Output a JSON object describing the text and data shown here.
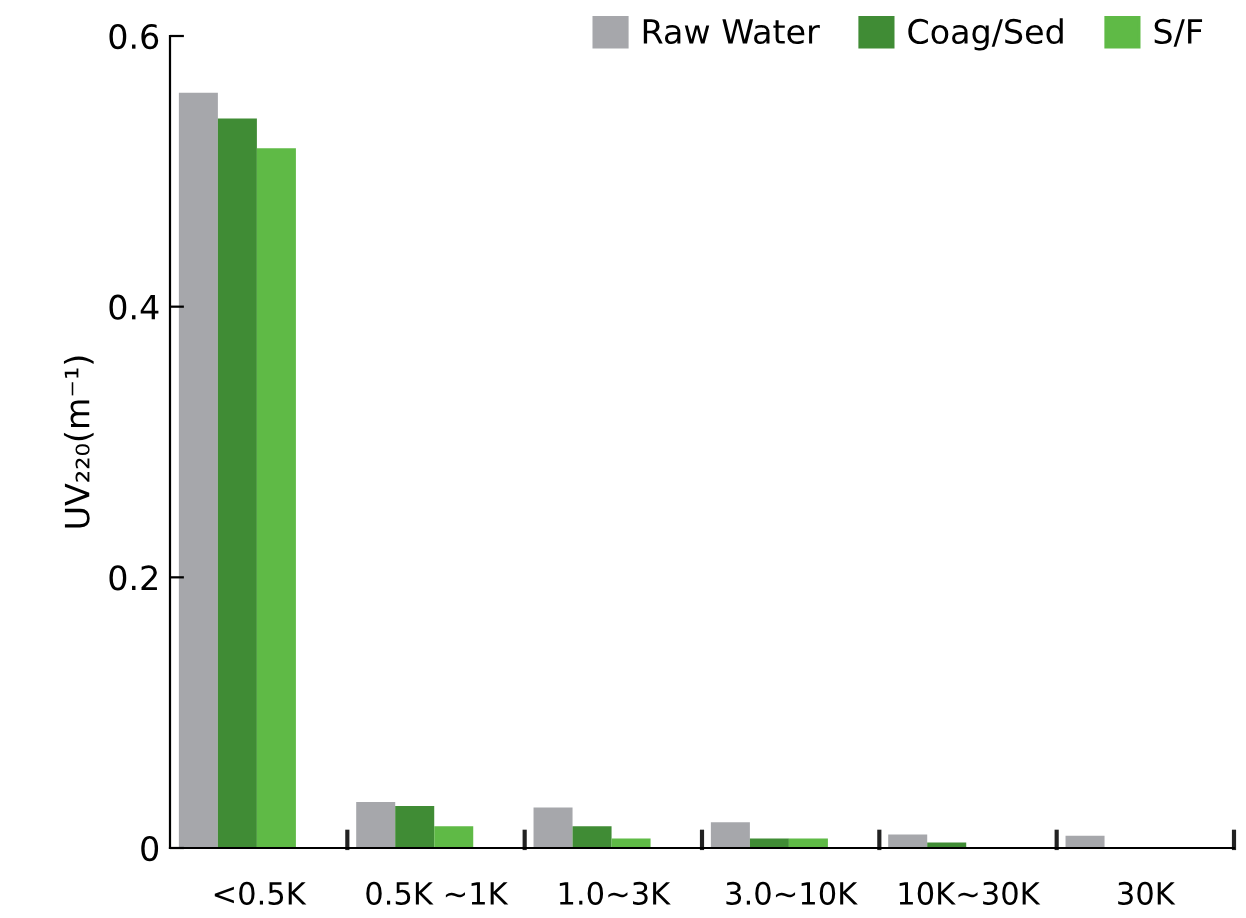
{
  "chart_data": {
    "type": "bar",
    "ylabel": "UV₂₂₀(m⁻¹)",
    "categories": [
      "<0.5K",
      "0.5K ~1K",
      "1.0~3K",
      "3.0~10K",
      "10K~30K",
      "30K"
    ],
    "series": [
      {
        "name": "Raw Water",
        "color": "#a6a7ab",
        "values": [
          0.558,
          0.034,
          0.03,
          0.019,
          0.01,
          0.009
        ]
      },
      {
        "name": "Coag/Sed",
        "color": "#408c35",
        "values": [
          0.539,
          0.031,
          0.016,
          0.007,
          0.004,
          0
        ]
      },
      {
        "name": "S/F",
        "color": "#5fba46",
        "values": [
          0.517,
          0.016,
          0.007,
          0.007,
          0,
          0
        ]
      }
    ],
    "ylim": [
      0,
      0.6
    ],
    "yticks": [
      0,
      0.2,
      0.4,
      0.6
    ],
    "grid": false,
    "legend": "top right"
  }
}
